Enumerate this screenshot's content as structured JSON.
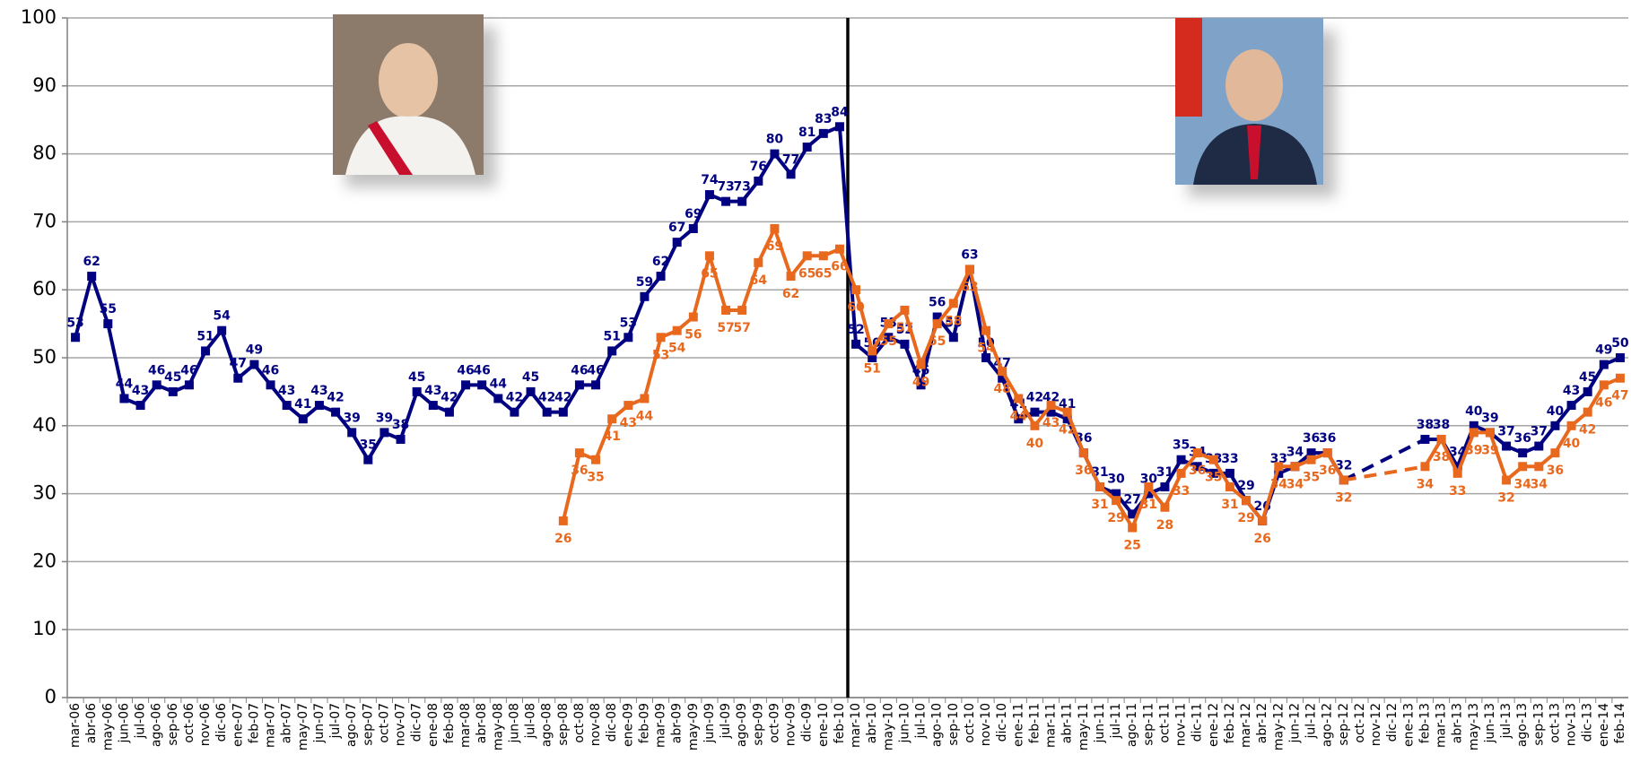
{
  "chart_data": {
    "type": "line",
    "categories": [
      "mar-06",
      "abr-06",
      "may-06",
      "jun-06",
      "jul-06",
      "ago-06",
      "sep-06",
      "oct-06",
      "nov-06",
      "dic-06",
      "ene-07",
      "feb-07",
      "mar-07",
      "abr-07",
      "may-07",
      "jun-07",
      "jul-07",
      "ago-07",
      "sep-07",
      "oct-07",
      "nov-07",
      "dic-07",
      "ene-08",
      "feb-08",
      "mar-08",
      "abr-08",
      "may-08",
      "jun-08",
      "jul-08",
      "ago-08",
      "sep-08",
      "oct-08",
      "nov-08",
      "dic-08",
      "ene-09",
      "feb-09",
      "mar-09",
      "abr-09",
      "may-09",
      "jun-09",
      "jul-09",
      "ago-09",
      "sep-09",
      "oct-09",
      "nov-09",
      "dic-09",
      "ene-10",
      "feb-10",
      "mar-10",
      "abr-10",
      "may-10",
      "jun-10",
      "jul-10",
      "ago-10",
      "sep-10",
      "oct-10",
      "nov-10",
      "dic-10",
      "ene-11",
      "feb-11",
      "mar-11",
      "abr-11",
      "may-11",
      "jun-11",
      "jul-11",
      "ago-11",
      "sep-11",
      "oct-11",
      "nov-11",
      "dic-11",
      "ene-12",
      "feb-12",
      "mar-12",
      "abr-12",
      "may-12",
      "jun-12",
      "jul-12",
      "ago-12",
      "sep-12",
      "oct-12",
      "nov-12",
      "dic-12",
      "ene-13",
      "feb-13",
      "mar-13",
      "abr-13",
      "may-13",
      "jun-13",
      "jul-13",
      "ago-13",
      "sep-13",
      "oct-13",
      "nov-13",
      "dic-13",
      "ene-14",
      "feb-14"
    ],
    "series": [
      {
        "color": "#000080",
        "values": [
          53,
          62,
          55,
          44,
          43,
          46,
          45,
          46,
          51,
          54,
          47,
          49,
          46,
          43,
          41,
          43,
          42,
          39,
          35,
          39,
          38,
          45,
          43,
          42,
          46,
          46,
          44,
          42,
          45,
          42,
          42,
          46,
          46,
          51,
          53,
          59,
          62,
          67,
          69,
          74,
          73,
          73,
          76,
          80,
          77,
          81,
          83,
          84,
          52,
          50,
          53,
          52,
          46,
          56,
          53,
          63,
          50,
          47,
          41,
          42,
          42,
          41,
          36,
          31,
          30,
          27,
          30,
          31,
          35,
          34,
          33,
          33,
          29,
          26,
          33,
          34,
          36,
          36,
          32,
          null,
          null,
          null,
          null,
          38,
          38,
          34,
          40,
          39,
          37,
          36,
          37,
          40,
          43,
          45,
          49,
          50
        ]
      },
      {
        "color": "#e8691e",
        "values": [
          null,
          null,
          null,
          null,
          null,
          null,
          null,
          null,
          null,
          null,
          null,
          null,
          null,
          null,
          null,
          null,
          null,
          null,
          null,
          null,
          null,
          null,
          null,
          null,
          null,
          null,
          null,
          null,
          null,
          null,
          26,
          36,
          35,
          41,
          43,
          44,
          53,
          54,
          56,
          65,
          57,
          57,
          64,
          69,
          62,
          65,
          65,
          66,
          60,
          51,
          55,
          57,
          49,
          55,
          58,
          63,
          54,
          48,
          44,
          40,
          43,
          42,
          36,
          31,
          29,
          25,
          31,
          28,
          33,
          36,
          35,
          31,
          29,
          26,
          34,
          34,
          35,
          36,
          32,
          null,
          null,
          null,
          null,
          34,
          38,
          33,
          39,
          39,
          32,
          34,
          34,
          36,
          40,
          42,
          46,
          47
        ]
      }
    ],
    "ylim": [
      0,
      100
    ],
    "yticks": [
      0,
      10,
      20,
      30,
      40,
      50,
      60,
      70,
      80,
      90,
      100
    ],
    "grid": true
  }
}
